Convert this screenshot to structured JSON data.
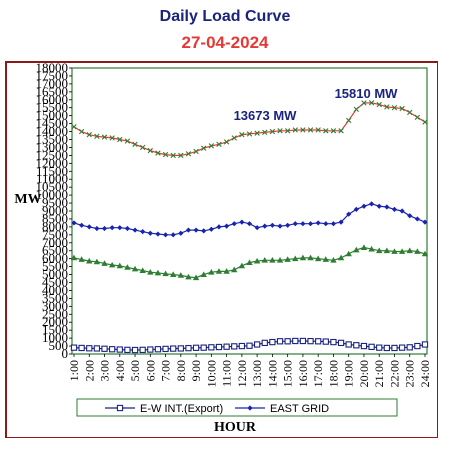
{
  "chart_data": {
    "type": "line",
    "title": "Daily Load Curve",
    "subtitle": "27-04-2024",
    "xlabel": "HOUR",
    "ylabel": "MW",
    "ylim": [
      0,
      18000
    ],
    "yticks": [
      "0",
      "500",
      "1000",
      "1500",
      "2000",
      "2500",
      "3000",
      "3500",
      "4000",
      "4500",
      "5000",
      "5500",
      "6000",
      "6500",
      "7000",
      "7500",
      "8000",
      "8500",
      "9000",
      "9500",
      "10000",
      "10500",
      "11000",
      "11500",
      "12000",
      "12500",
      "13000",
      "13500",
      "14000",
      "14500",
      "15000",
      "15500",
      "16000",
      "16500",
      "17000",
      "17500",
      "18000"
    ],
    "x": [
      "1:00",
      "1:30",
      "2:00",
      "2:30",
      "3:00",
      "3:30",
      "4:00",
      "4:30",
      "5:00",
      "5:30",
      "6:00",
      "6:30",
      "7:00",
      "7:30",
      "8:00",
      "8:30",
      "9:00",
      "9:30",
      "10:00",
      "10:30",
      "11:00",
      "11:30",
      "12:00",
      "12:30",
      "13:00",
      "13:30",
      "14:00",
      "14:30",
      "15:00",
      "15:30",
      "16:00",
      "16:30",
      "17:00",
      "17:30",
      "18:00",
      "18:30",
      "19:00",
      "19:30",
      "20:00",
      "20:30",
      "21:00",
      "21:30",
      "22:00",
      "22:30",
      "23:00",
      "23:30",
      "24:00"
    ],
    "xtick_labels": [
      "1:00",
      "2:00",
      "3:00",
      "4:00",
      "5:00",
      "6:00",
      "7:00",
      "8:00",
      "9:00",
      "10:00",
      "11:00",
      "12:00",
      "13:00",
      "14:00",
      "15:00",
      "16:00",
      "17:00",
      "18:00",
      "19:00",
      "20:00",
      "21:00",
      "22:00",
      "23:00",
      "24:00"
    ],
    "grid": false,
    "legend_position": "bottom",
    "annotations": [
      {
        "text": "13673 MW",
        "x": "15:00",
        "y": 13673
      },
      {
        "text": "15810 MW",
        "x": "20:00",
        "y": 15810
      }
    ],
    "series": [
      {
        "name": "",
        "color": "#e53935",
        "marker_color": "#2e7d32",
        "marker": "x",
        "values": [
          14300,
          14000,
          13800,
          13700,
          13650,
          13600,
          13500,
          13400,
          13200,
          13000,
          12800,
          12650,
          12550,
          12500,
          12500,
          12600,
          12750,
          12950,
          13100,
          13200,
          13350,
          13600,
          13800,
          13850,
          13900,
          13950,
          14000,
          14050,
          14050,
          14100,
          14100,
          14100,
          14100,
          14050,
          14050,
          14050,
          14700,
          15400,
          15800,
          15810,
          15700,
          15550,
          15500,
          15450,
          15200,
          14900,
          14600
        ]
      },
      {
        "name": "EAST GRID",
        "color": "#1a23b0",
        "marker": "diamond",
        "values": [
          8250,
          8100,
          8000,
          7900,
          7900,
          7950,
          7950,
          7900,
          7800,
          7700,
          7600,
          7550,
          7500,
          7500,
          7600,
          7800,
          7800,
          7750,
          7850,
          8000,
          8050,
          8200,
          8300,
          8200,
          7950,
          8050,
          8100,
          8050,
          8100,
          8200,
          8200,
          8200,
          8250,
          8200,
          8200,
          8300,
          8800,
          9100,
          9300,
          9450,
          9300,
          9250,
          9100,
          9000,
          8700,
          8500,
          8300
        ]
      },
      {
        "name": "",
        "color": "#2e7d32",
        "marker": "triangle",
        "values": [
          6050,
          5950,
          5850,
          5800,
          5700,
          5600,
          5550,
          5450,
          5350,
          5250,
          5150,
          5100,
          5050,
          5000,
          4950,
          4850,
          4800,
          5000,
          5150,
          5200,
          5200,
          5300,
          5550,
          5750,
          5850,
          5900,
          5900,
          5900,
          5950,
          6000,
          6050,
          6050,
          6000,
          5950,
          5900,
          6050,
          6300,
          6550,
          6700,
          6600,
          6500,
          6500,
          6450,
          6450,
          6500,
          6450,
          6300
        ]
      },
      {
        "name": "E-W INT.(Export)",
        "color": "#1a237e",
        "marker": "square",
        "values": [
          400,
          380,
          360,
          350,
          330,
          300,
          280,
          260,
          250,
          260,
          280,
          300,
          320,
          340,
          350,
          370,
          390,
          400,
          420,
          440,
          460,
          480,
          500,
          520,
          600,
          700,
          750,
          800,
          800,
          820,
          820,
          810,
          800,
          780,
          750,
          700,
          600,
          550,
          500,
          450,
          400,
          380,
          380,
          400,
          420,
          500,
          600
        ]
      }
    ]
  }
}
